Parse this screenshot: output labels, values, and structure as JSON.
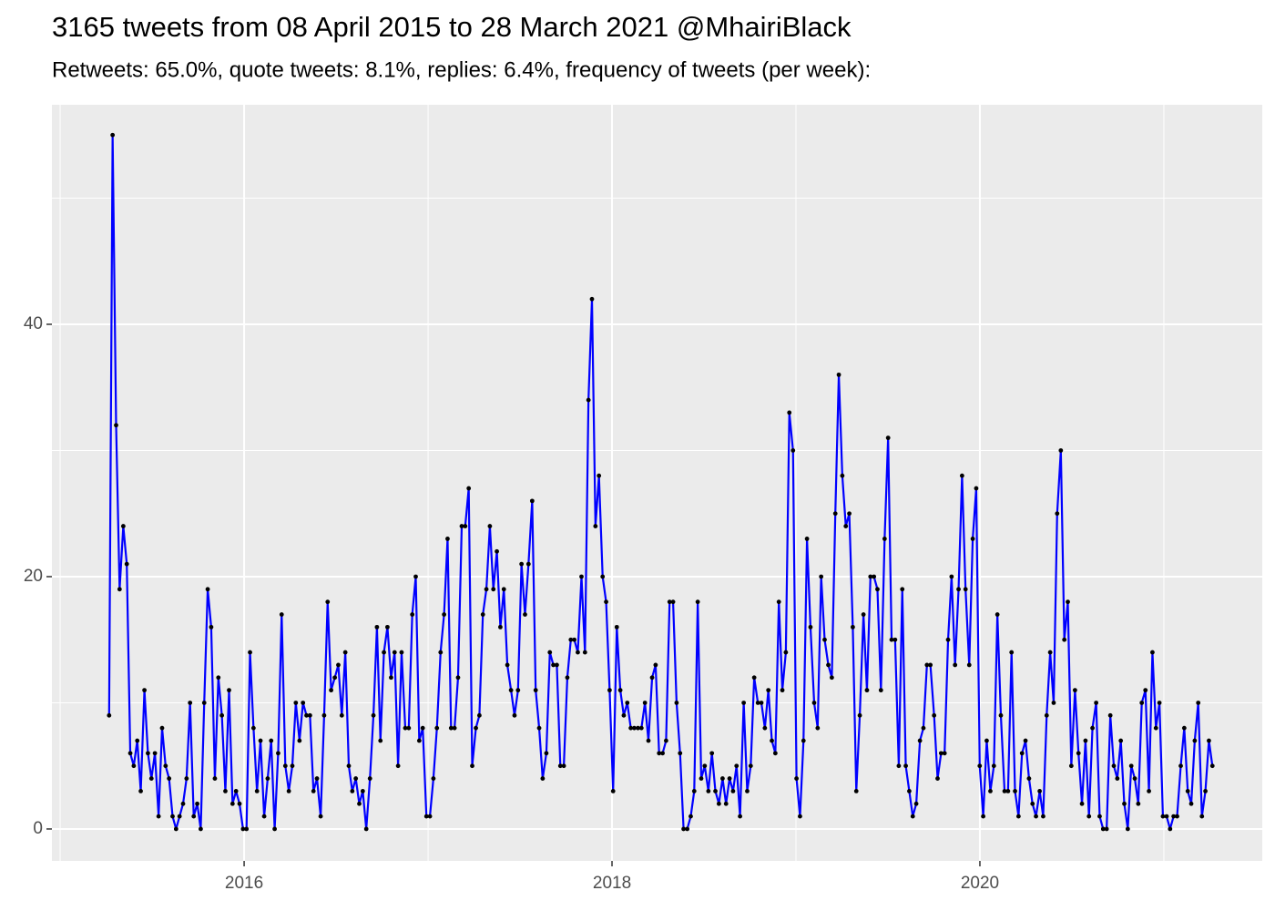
{
  "chart_data": {
    "type": "line",
    "title": "3165 tweets from 08 April 2015 to 28 March 2021 @MhairiBlack",
    "subtitle": "Retweets: 65.0%, quote tweets: 8.1%, replies: 6.4%, frequency of tweets (per week):",
    "color": "blue",
    "point_color": "black",
    "grid": true,
    "background": "#EBEBEB",
    "xlim": [
      2014.955,
      2021.535
    ],
    "xticks": [
      2016,
      2018,
      2020
    ],
    "minor_xticks": [
      2015,
      2017,
      2019,
      2021
    ],
    "ylim": [
      -2.53,
      57.4
    ],
    "yticks": [
      0,
      20,
      40
    ],
    "minor_yticks": [
      10,
      30,
      50
    ],
    "x": [
      2015.266,
      2015.285,
      2015.304,
      2015.323,
      2015.343,
      2015.362,
      2015.381,
      2015.4,
      2015.419,
      2015.438,
      2015.458,
      2015.477,
      2015.496,
      2015.515,
      2015.535,
      2015.554,
      2015.573,
      2015.592,
      2015.611,
      2015.63,
      2015.649,
      2015.668,
      2015.687,
      2015.706,
      2015.726,
      2015.745,
      2015.764,
      2015.783,
      2015.802,
      2015.821,
      2015.841,
      2015.86,
      2015.879,
      2015.898,
      2015.918,
      2015.937,
      2015.956,
      2015.975,
      2015.994,
      2016.013,
      2016.032,
      2016.051,
      2016.07,
      2016.089,
      2016.109,
      2016.128,
      2016.147,
      2016.166,
      2016.185,
      2016.204,
      2016.224,
      2016.243,
      2016.262,
      2016.281,
      2016.301,
      2016.32,
      2016.339,
      2016.358,
      2016.377,
      2016.396,
      2016.416,
      2016.435,
      2016.454,
      2016.473,
      2016.493,
      2016.512,
      2016.531,
      2016.55,
      2016.569,
      2016.588,
      2016.607,
      2016.626,
      2016.645,
      2016.664,
      2016.684,
      2016.703,
      2016.722,
      2016.741,
      2016.76,
      2016.779,
      2016.799,
      2016.818,
      2016.837,
      2016.856,
      2016.876,
      2016.895,
      2016.914,
      2016.933,
      2016.952,
      2016.971,
      2016.991,
      2017.01,
      2017.029,
      2017.048,
      2017.068,
      2017.087,
      2017.106,
      2017.125,
      2017.144,
      2017.163,
      2017.183,
      2017.202,
      2017.221,
      2017.24,
      2017.26,
      2017.279,
      2017.298,
      2017.317,
      2017.336,
      2017.355,
      2017.374,
      2017.393,
      2017.412,
      2017.431,
      2017.451,
      2017.47,
      2017.489,
      2017.508,
      2017.527,
      2017.546,
      2017.566,
      2017.585,
      2017.604,
      2017.623,
      2017.643,
      2017.662,
      2017.681,
      2017.7,
      2017.719,
      2017.738,
      2017.757,
      2017.776,
      2017.795,
      2017.814,
      2017.834,
      2017.853,
      2017.872,
      2017.891,
      2017.91,
      2017.929,
      2017.949,
      2017.968,
      2017.987,
      2018.006,
      2018.026,
      2018.045,
      2018.064,
      2018.083,
      2018.102,
      2018.121,
      2018.141,
      2018.16,
      2018.179,
      2018.198,
      2018.218,
      2018.237,
      2018.256,
      2018.275,
      2018.294,
      2018.313,
      2018.332,
      2018.351,
      2018.37,
      2018.389,
      2018.409,
      2018.428,
      2018.447,
      2018.466,
      2018.485,
      2018.504,
      2018.524,
      2018.543,
      2018.562,
      2018.581,
      2018.601,
      2018.62,
      2018.639,
      2018.658,
      2018.677,
      2018.696,
      2018.716,
      2018.735,
      2018.754,
      2018.773,
      2018.793,
      2018.812,
      2018.831,
      2018.85,
      2018.869,
      2018.888,
      2018.907,
      2018.926,
      2018.945,
      2018.964,
      2018.984,
      2019.003,
      2019.022,
      2019.041,
      2019.06,
      2019.079,
      2019.099,
      2019.118,
      2019.137,
      2019.156,
      2019.176,
      2019.195,
      2019.214,
      2019.233,
      2019.252,
      2019.271,
      2019.29,
      2019.309,
      2019.328,
      2019.347,
      2019.367,
      2019.386,
      2019.405,
      2019.424,
      2019.443,
      2019.462,
      2019.482,
      2019.501,
      2019.52,
      2019.539,
      2019.559,
      2019.578,
      2019.597,
      2019.616,
      2019.635,
      2019.654,
      2019.674,
      2019.693,
      2019.712,
      2019.731,
      2019.751,
      2019.77,
      2019.789,
      2019.808,
      2019.827,
      2019.846,
      2019.865,
      2019.884,
      2019.903,
      2019.922,
      2019.942,
      2019.961,
      2019.98,
      2019.999,
      2020.018,
      2020.037,
      2020.057,
      2020.076,
      2020.095,
      2020.114,
      2020.134,
      2020.153,
      2020.172,
      2020.191,
      2020.21,
      2020.229,
      2020.248,
      2020.267,
      2020.286,
      2020.305,
      2020.325,
      2020.344,
      2020.363,
      2020.382,
      2020.401,
      2020.42,
      2020.44,
      2020.459,
      2020.478,
      2020.497,
      2020.517,
      2020.536,
      2020.555,
      2020.574,
      2020.593,
      2020.612,
      2020.632,
      2020.651,
      2020.67,
      2020.689,
      2020.709,
      2020.728,
      2020.747,
      2020.766,
      2020.785,
      2020.804,
      2020.823,
      2020.842,
      2020.861,
      2020.88,
      2020.9,
      2020.919,
      2020.938,
      2020.957,
      2020.976,
      2020.995,
      2021.015,
      2021.034,
      2021.053,
      2021.072,
      2021.092,
      2021.111,
      2021.13,
      2021.149,
      2021.168,
      2021.187,
      2021.207,
      2021.226,
      2021.245,
      2021.264
    ],
    "values": [
      9,
      55,
      32,
      19,
      24,
      21,
      6,
      5,
      7,
      3,
      11,
      6,
      4,
      6,
      1,
      8,
      5,
      4,
      1,
      0,
      1,
      2,
      4,
      10,
      1,
      2,
      0,
      10,
      19,
      16,
      4,
      12,
      9,
      3,
      11,
      2,
      3,
      2,
      0,
      0,
      14,
      8,
      3,
      7,
      1,
      4,
      7,
      0,
      6,
      17,
      5,
      3,
      5,
      10,
      7,
      10,
      9,
      9,
      3,
      4,
      1,
      9,
      18,
      11,
      12,
      13,
      9,
      14,
      5,
      3,
      4,
      2,
      3,
      0,
      4,
      9,
      16,
      7,
      14,
      16,
      12,
      14,
      5,
      14,
      8,
      8,
      17,
      20,
      7,
      8,
      1,
      1,
      4,
      8,
      14,
      17,
      23,
      8,
      8,
      12,
      24,
      24,
      27,
      5,
      8,
      9,
      17,
      19,
      24,
      19,
      22,
      16,
      19,
      13,
      11,
      9,
      11,
      21,
      17,
      21,
      26,
      11,
      8,
      4,
      6,
      14,
      13,
      13,
      5,
      5,
      12,
      15,
      15,
      14,
      20,
      14,
      34,
      42,
      24,
      28,
      20,
      18,
      11,
      3,
      16,
      11,
      9,
      10,
      8,
      8,
      8,
      8,
      10,
      7,
      12,
      13,
      6,
      6,
      7,
      18,
      18,
      10,
      6,
      0,
      0,
      1,
      3,
      18,
      4,
      5,
      3,
      6,
      3,
      2,
      4,
      2,
      4,
      3,
      5,
      1,
      10,
      3,
      5,
      12,
      10,
      10,
      8,
      11,
      7,
      6,
      18,
      11,
      14,
      33,
      30,
      4,
      1,
      7,
      23,
      16,
      10,
      8,
      20,
      15,
      13,
      12,
      25,
      36,
      28,
      24,
      25,
      16,
      3,
      9,
      17,
      11,
      20,
      20,
      19,
      11,
      23,
      31,
      15,
      15,
      5,
      19,
      5,
      3,
      1,
      2,
      7,
      8,
      13,
      13,
      9,
      4,
      6,
      6,
      15,
      20,
      13,
      19,
      28,
      19,
      13,
      23,
      27,
      5,
      1,
      7,
      3,
      5,
      17,
      9,
      3,
      3,
      14,
      3,
      1,
      6,
      7,
      4,
      2,
      1,
      3,
      1,
      9,
      14,
      10,
      25,
      30,
      15,
      18,
      5,
      11,
      6,
      2,
      7,
      1,
      8,
      10,
      1,
      0,
      0,
      9,
      5,
      4,
      7,
      2,
      0,
      5,
      4,
      2,
      10,
      11,
      3,
      14,
      8,
      10,
      1,
      1,
      0,
      1,
      1,
      5,
      8,
      3,
      2,
      7,
      10,
      1,
      3,
      7,
      5
    ]
  }
}
